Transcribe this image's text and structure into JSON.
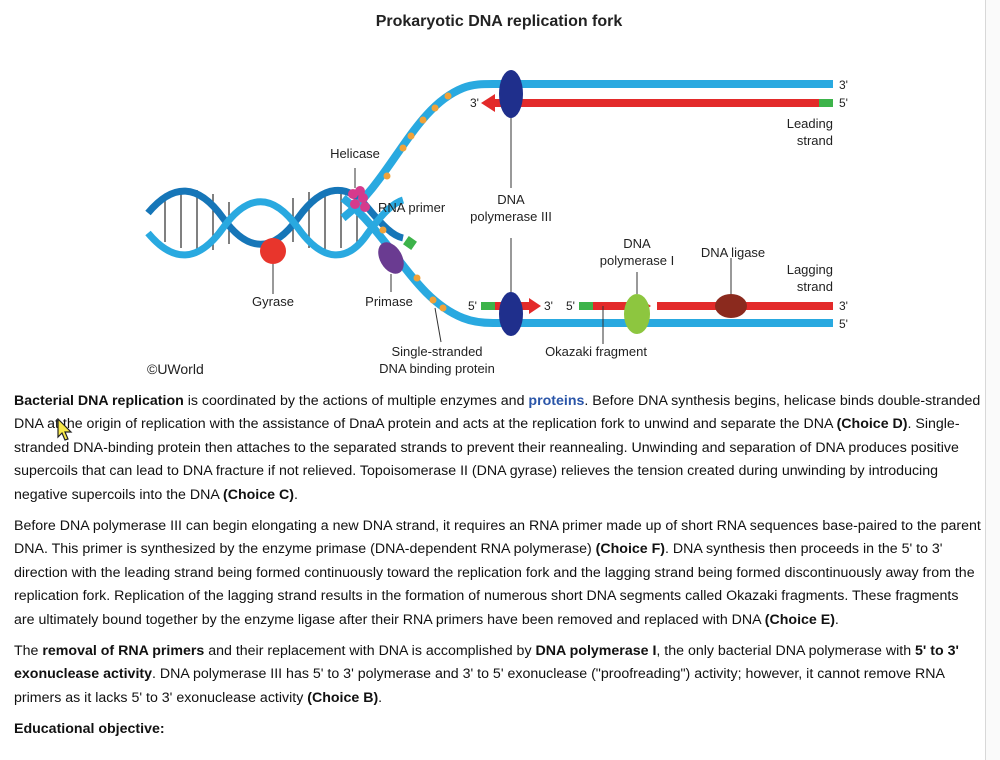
{
  "figure": {
    "title": "Prokaryotic DNA replication fork",
    "labels": {
      "helicase": "Helicase",
      "rna_primer": "RNA primer",
      "dna_pol3_line1": "DNA",
      "dna_pol3_line2": "polymerase III",
      "dna_pol1_line1": "DNA",
      "dna_pol1_line2": "polymerase I",
      "dna_ligase": "DNA ligase",
      "leading_line1": "Leading",
      "leading_line2": "strand",
      "lagging_line1": "Lagging",
      "lagging_line2": "strand",
      "gyrase": "Gyrase",
      "primase": "Primase",
      "ssb_line1": "Single-stranded",
      "ssb_line2": "DNA binding protein",
      "okazaki": "Okazaki fragment",
      "copyright": "©UWorld",
      "three_prime": "3'",
      "five_prime": "5'"
    },
    "colors": {
      "dna_strand": "#29a9e0",
      "dna_strand_dark": "#1676b8",
      "new_strand": "#e32a2a",
      "primer": "#3db34a",
      "polymerase": "#1f2f8c",
      "gyrase": "#e8352c",
      "helicase": "#d63a8c",
      "primase": "#6a3b91",
      "ssb": "#f0a23a",
      "pol1": "#8dc63f",
      "ligase": "#8b2a1e"
    }
  },
  "paragraphs": {
    "p1": {
      "s1": "Bacterial DNA replication",
      "s2": " is coordinated by the actions of multiple enzymes and ",
      "s3": "proteins",
      "s4": ".  Before DNA synthesis begins, helicase binds double-stranded DNA at the origin of replication with the assistance of DnaA protein and acts at the replication fork to unwind and separate the DNA ",
      "s5": "(Choice D)",
      "s6": ".  Single-stranded DNA-binding protein then attaches to the separated strands to prevent their reannealing.  Unwinding and separation of DNA produces positive supercoils that can lead to DNA fracture if not relieved.  Topoisomerase II (DNA gyrase) relieves the tension created during unwinding by introducing negative supercoils into the DNA ",
      "s7": "(Choice C)",
      "s8": "."
    },
    "p2": {
      "s1": "Before DNA polymerase III can begin elongating a new DNA strand, it requires an RNA primer made up of short RNA sequences base-paired to the parent DNA.  This primer is synthesized by the enzyme primase (DNA-dependent RNA polymerase) ",
      "s2": "(Choice F)",
      "s3": ".  DNA synthesis then proceeds in the 5' to 3' direction with the leading strand being formed continuously toward the replication fork and the lagging strand being formed discontinuously away from the replication fork.  Replication of the lagging strand results in the formation of numerous short DNA segments called Okazaki fragments.  These fragments are ultimately bound together by the enzyme ligase after their RNA primers have been removed and replaced with DNA ",
      "s4": "(Choice E)",
      "s5": "."
    },
    "p3": {
      "s1": "The ",
      "s2": "removal of RNA primers",
      "s3": " and their replacement with DNA is accomplished by ",
      "s4": "DNA polymerase I",
      "s5": ", the only bacterial DNA polymerase with ",
      "s6": "5' to 3' exonuclease activity",
      "s7": ".  DNA polymerase III has 5' to 3' polymerase and 3' to 5' exonuclease (\"proofreading\") activity; however, it cannot remove RNA primers as it lacks 5' to 3' exonuclease activity ",
      "s8": "(Choice B)",
      "s9": "."
    },
    "educational_objective": "Educational objective:"
  }
}
